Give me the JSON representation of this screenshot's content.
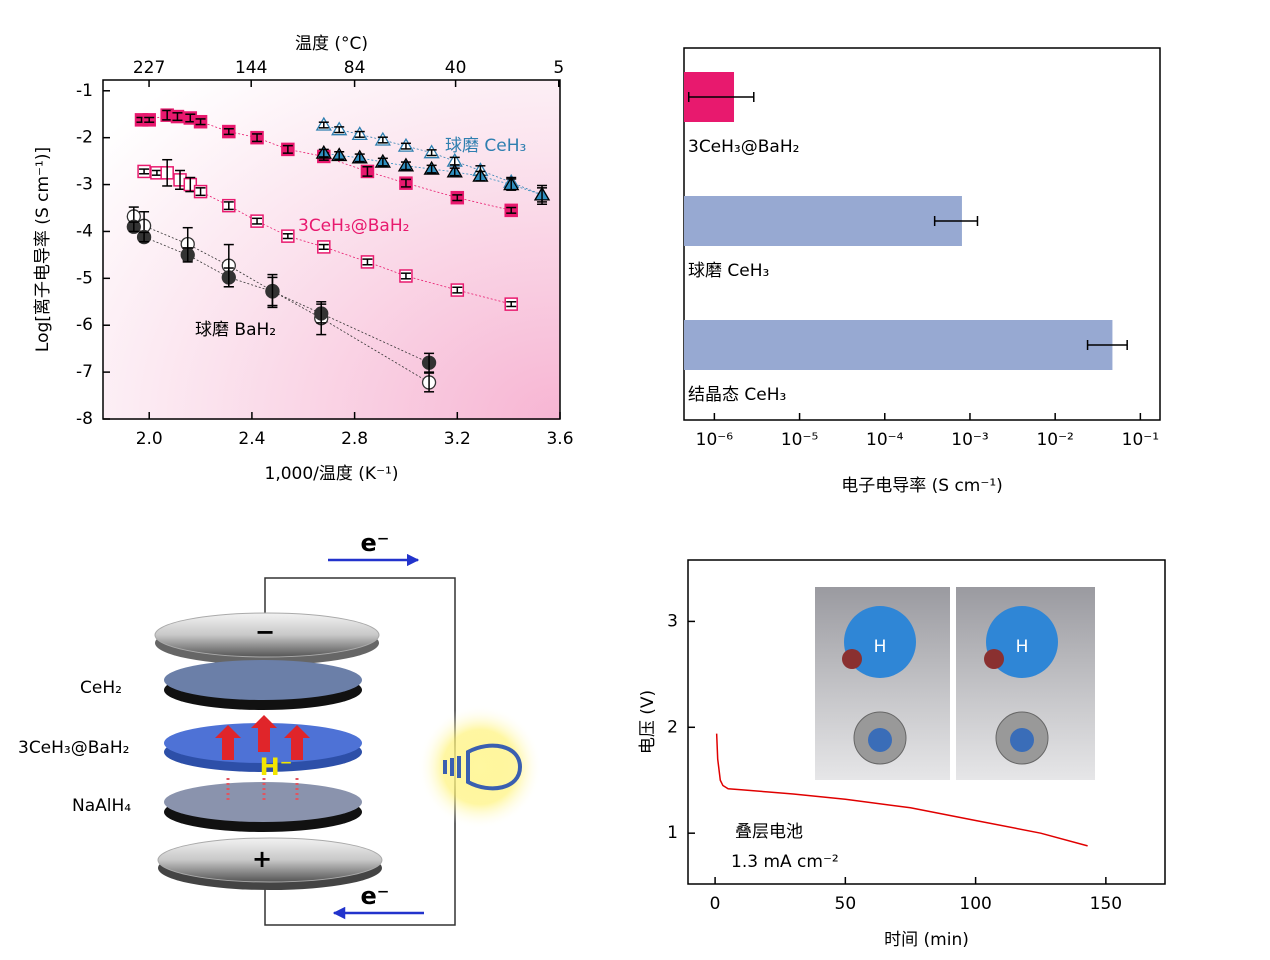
{
  "chart_data": [
    {
      "type": "scatter",
      "x_label": "1,000/温度 (K⁻¹)",
      "y_label": "Log[离子电导率 (S cm⁻¹)]",
      "x2_label": "温度 (°C)",
      "xlim": [
        1.82,
        3.6
      ],
      "ylim": [
        -8,
        -0.77
      ],
      "xticks": [
        {
          "value": 2.0,
          "label": "2.0"
        },
        2.4,
        2.8,
        3.2,
        3.6
      ],
      "yticks": [
        -8,
        -7,
        -6,
        -5,
        -4,
        -3,
        -2,
        -1
      ],
      "x2ticks": [
        227,
        144,
        84,
        40,
        5
      ],
      "series": [
        {
          "color": "#e8196e",
          "marker": "square",
          "filled": true,
          "x": [
            1.97,
            2.0,
            2.07,
            2.11,
            2.16,
            2.2,
            2.31,
            2.42,
            2.54,
            2.68,
            2.85,
            3.0,
            3.2,
            3.41
          ],
          "values": [
            -1.62,
            -1.62,
            -1.52,
            -1.55,
            -1.58,
            -1.66,
            -1.87,
            -2.0,
            -2.25,
            -2.4,
            -2.72,
            -2.97,
            -3.28,
            -3.55
          ],
          "errors": [
            0.05,
            0.05,
            0.1,
            0.08,
            0.08,
            0.06,
            0.06,
            0.08,
            0.08,
            0.08,
            0.1,
            0.08,
            0.06,
            0.06
          ]
        },
        {
          "color": "#e8196e",
          "marker": "square",
          "filled": false,
          "x": [
            1.98,
            2.03,
            2.07,
            2.12,
            2.16,
            2.2,
            2.31,
            2.42,
            2.54,
            2.68,
            2.85,
            3.0,
            3.2,
            3.41
          ],
          "values": [
            -2.72,
            -2.75,
            -2.75,
            -2.9,
            -3.0,
            -3.15,
            -3.45,
            -3.78,
            -4.1,
            -4.33,
            -4.65,
            -4.95,
            -5.25,
            -5.55
          ],
          "errors": [
            0.05,
            0.05,
            0.28,
            0.2,
            0.15,
            0.08,
            0.08,
            0.06,
            0.05,
            0.05,
            0.06,
            0.06,
            0.06,
            0.05
          ]
        },
        {
          "color": "#2f7fb0",
          "marker": "triangle",
          "filled": false,
          "x": [
            2.68,
            2.74,
            2.82,
            2.91,
            3.0,
            3.1,
            3.19,
            3.29,
            3.41,
            3.53
          ],
          "values": [
            -1.73,
            -1.83,
            -1.93,
            -2.05,
            -2.18,
            -2.32,
            -2.5,
            -2.7,
            -2.95,
            -3.22
          ],
          "errors": [
            0.06,
            0.06,
            0.06,
            0.06,
            0.06,
            0.06,
            0.08,
            0.1,
            0.1,
            0.15
          ]
        },
        {
          "color": "#2f8fc0",
          "marker": "triangle",
          "filled": true,
          "x": [
            2.68,
            2.74,
            2.82,
            2.91,
            3.0,
            3.1,
            3.19,
            3.29,
            3.41,
            3.53
          ],
          "values": [
            -2.33,
            -2.38,
            -2.43,
            -2.52,
            -2.6,
            -2.67,
            -2.73,
            -2.82,
            -3.0,
            -3.22
          ],
          "errors": [
            0.08,
            0.08,
            0.08,
            0.08,
            0.08,
            0.08,
            0.08,
            0.1,
            0.12,
            0.2
          ]
        },
        {
          "color": "#333333",
          "marker": "circle",
          "filled": false,
          "x": [
            1.94,
            1.98,
            2.15,
            2.31,
            2.48,
            2.67,
            3.09
          ],
          "values": [
            -3.68,
            -3.88,
            -4.27,
            -4.73,
            -5.27,
            -5.85,
            -7.22
          ],
          "errors": [
            0.2,
            0.3,
            0.35,
            0.45,
            0.35,
            0.35,
            0.2
          ]
        },
        {
          "color": "#333333",
          "marker": "circle",
          "filled": true,
          "x": [
            1.94,
            1.98,
            2.15,
            2.31,
            2.48,
            2.67,
            3.09
          ],
          "values": [
            -3.9,
            -4.12,
            -4.5,
            -4.98,
            -5.28,
            -5.75,
            -6.8
          ],
          "errors": [
            0.1,
            0.1,
            0.15,
            0.2,
            0.3,
            0.2,
            0.2
          ]
        }
      ],
      "annotations": [
        {
          "text": "球磨 CeH₃",
          "color": "#2f7fb0"
        },
        {
          "text": "3CeH₃@BaH₂",
          "color": "#e8196e"
        },
        {
          "text": "球磨 BaH₂",
          "color": "#000000"
        }
      ]
    },
    {
      "type": "bar",
      "x_label": "电子电导率 (S cm⁻¹)",
      "xscale": "log",
      "xlim": [
        4.4e-07,
        0.17
      ],
      "xticks": [
        {
          "value": 1e-06,
          "label": "10⁻⁶"
        },
        {
          "value": 1e-05,
          "label": "10⁻⁵"
        },
        {
          "value": 0.0001,
          "label": "10⁻⁴"
        },
        {
          "value": 0.001,
          "label": "10⁻³"
        },
        {
          "value": 0.01,
          "label": "10⁻²"
        },
        {
          "value": 0.1,
          "label": "10⁻¹"
        }
      ],
      "categories": [
        "3CeH₃@BaH₂",
        "球磨 CeH₃",
        "结晶态 CeH₃"
      ],
      "values": [
        1.7e-06,
        0.000805,
        0.047
      ],
      "errors": [
        1.2e-06,
        0.00042,
        0.023
      ],
      "colors": [
        "#e8196e",
        "#97a9d2",
        "#97a9d2"
      ]
    },
    {
      "type": "line",
      "x_label": "时间 (min)",
      "y_label": "电压 (V)",
      "xlim": [
        -10.4,
        172.7
      ],
      "ylim": [
        0.52,
        3.58
      ],
      "xticks": [
        0,
        50,
        100,
        150
      ],
      "yticks": [
        1,
        2,
        3
      ],
      "x": [
        0.6,
        1,
        2,
        3,
        5,
        10,
        20,
        30,
        50,
        75,
        100,
        125,
        143
      ],
      "values": [
        1.94,
        1.7,
        1.5,
        1.45,
        1.42,
        1.41,
        1.39,
        1.37,
        1.32,
        1.24,
        1.12,
        1.0,
        0.88
      ],
      "color": "#e00000",
      "annotations": [
        {
          "text": "叠层电池",
          "color": "#000000"
        },
        {
          "text": "1.3 mA cm⁻²",
          "color": "#000000"
        }
      ]
    }
  ],
  "diagram": {
    "electron_top": "e⁻",
    "electron_bottom": "e⁻",
    "minus": "−",
    "plus": "+",
    "layer_top": "CeH₂",
    "layer_mid": "3CeH₃@BaH₂",
    "layer_bottom": "NaAlH₄",
    "ion": "H⁻"
  }
}
